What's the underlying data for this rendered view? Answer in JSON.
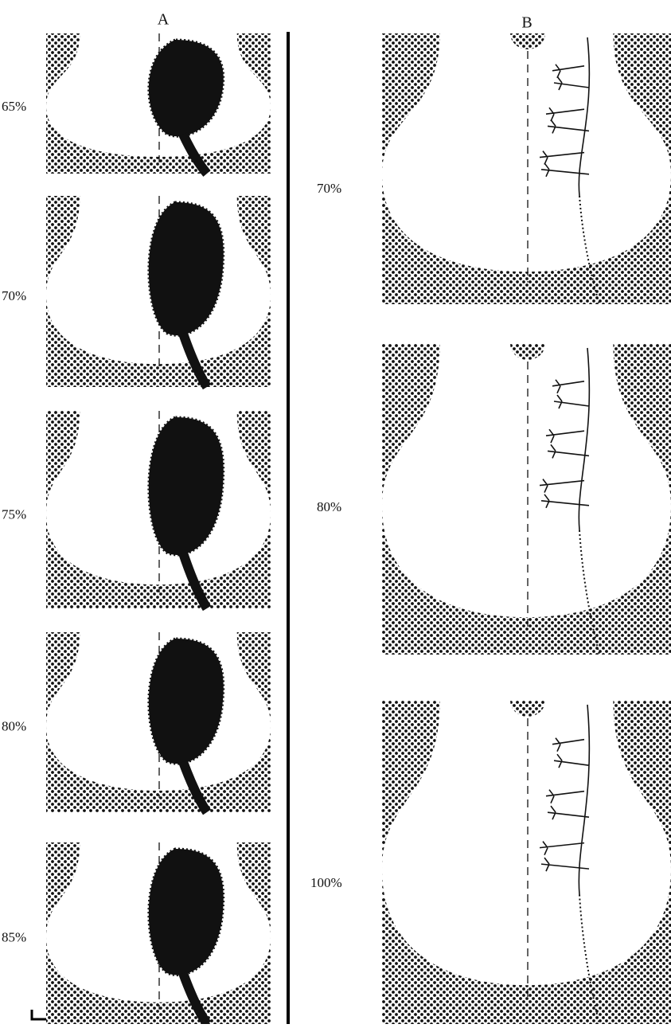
{
  "panel_a": {
    "label": "A",
    "rows": [
      {
        "label": "65%"
      },
      {
        "label": "70%"
      },
      {
        "label": "75%"
      },
      {
        "label": "80%"
      },
      {
        "label": "85%"
      }
    ]
  },
  "panel_b": {
    "label": "B",
    "rows": [
      {
        "label": "70%"
      },
      {
        "label": "80%"
      },
      {
        "label": "100%"
      }
    ]
  }
}
